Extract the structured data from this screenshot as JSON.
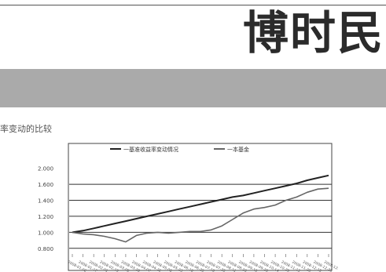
{
  "header": {
    "brand": "博时民"
  },
  "caption": "率变动的比较",
  "chart_data": {
    "type": "line",
    "legend": [
      "一基准收益率变动情况",
      "一本基金"
    ],
    "legend_position": "top",
    "y_ticks": [
      "2.000",
      "1.600",
      "1.400",
      "1.200",
      "1.000",
      "0.800"
    ],
    "y_gridlines": [
      1.6,
      1.4,
      1.2,
      1.0,
      0.8
    ],
    "ylim": [
      0.7,
      2.1
    ],
    "x_count": 25,
    "x_labels": [
      "2008-01-02",
      "2008-01-17",
      "2008-02-01",
      "2008-02-19",
      "2008-03-05",
      "2008-03-20",
      "2008-04-07",
      "2008-04-22",
      "2008-05-08",
      "2008-05-23",
      "2008-06-10",
      "2008-06-25",
      "2008-07-10",
      "2008-07-25",
      "2008-08-11",
      "2008-08-26",
      "2008-09-10",
      "2008-09-26",
      "2008-10-14",
      "2008-10-29",
      "2008-11-13",
      "2008-11-28",
      "2008-12-15",
      "2008-12-26",
      "2008-12-31"
    ],
    "series": [
      {
        "name": "一基准收益率变动情况",
        "color": "#222222",
        "values": [
          1.0,
          1.02,
          1.05,
          1.08,
          1.11,
          1.14,
          1.17,
          1.2,
          1.23,
          1.26,
          1.29,
          1.32,
          1.35,
          1.38,
          1.41,
          1.44,
          1.46,
          1.49,
          1.52,
          1.55,
          1.58,
          1.61,
          1.65,
          1.68,
          1.71
        ]
      },
      {
        "name": "一本基金",
        "color": "#666666",
        "values": [
          1.0,
          0.98,
          0.97,
          0.95,
          0.92,
          0.88,
          0.96,
          0.99,
          1.0,
          0.99,
          1.0,
          1.01,
          1.01,
          1.03,
          1.08,
          1.16,
          1.24,
          1.29,
          1.31,
          1.34,
          1.4,
          1.44,
          1.5,
          1.54,
          1.55
        ]
      }
    ]
  }
}
